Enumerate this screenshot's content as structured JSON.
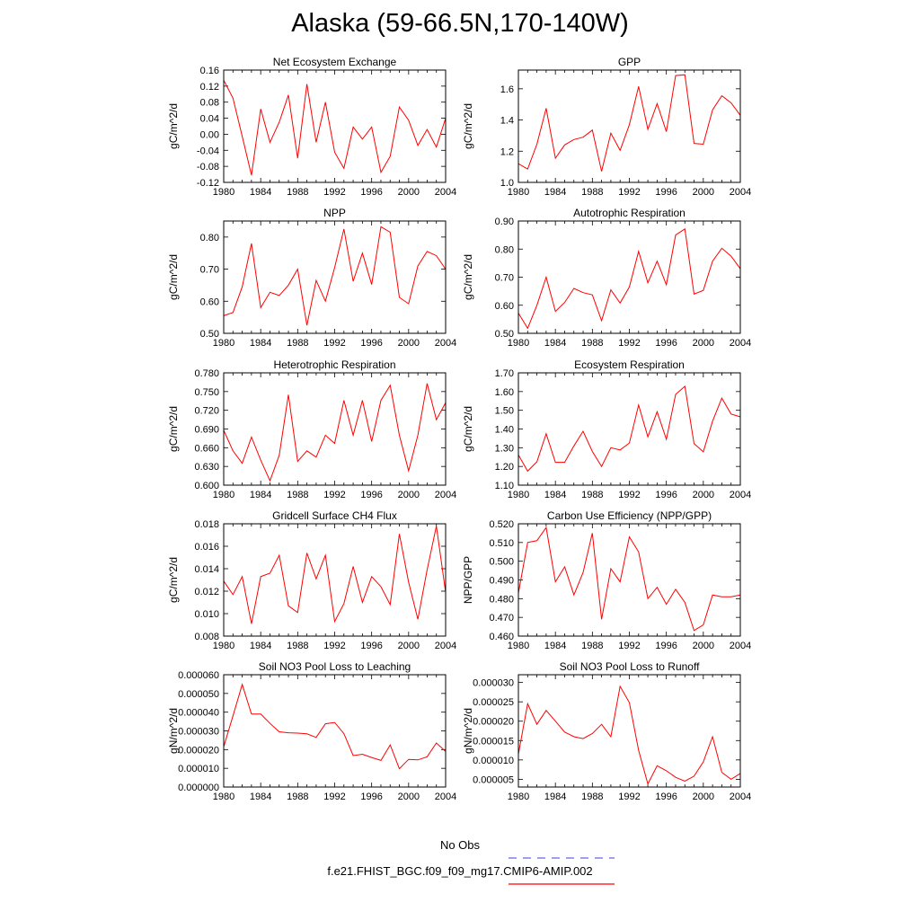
{
  "title": "Alaska (59-66.5N,170-140W)",
  "legend": {
    "obs_label": "No Obs",
    "obs_color": "#6666dd",
    "model_label": "f.e21.FHIST_BGC.f09_f09_mg17.CMIP6-AMIP.002",
    "model_color": "#ff0000"
  },
  "chart_data": [
    {
      "type": "line",
      "title": "Net Ecosystem Exchange",
      "ylabel": "gC/m^2/d",
      "xlim": [
        1980,
        2004
      ],
      "xticks": [
        "1980",
        "1984",
        "1988",
        "1992",
        "1996",
        "2000",
        "2004"
      ],
      "ylim": [
        -0.12,
        0.16
      ],
      "yticks": [
        "-0.12",
        "-0.08",
        "-0.04",
        "0.00",
        "0.04",
        "0.08",
        "0.12",
        "0.16"
      ],
      "series": [
        {
          "x": [
            1980,
            1981,
            1982,
            1983,
            1984,
            1985,
            1986,
            1987,
            1988,
            1989,
            1990,
            1991,
            1992,
            1993,
            1994,
            1995,
            1996,
            1997,
            1998,
            1999,
            2000,
            2001,
            2002,
            2003,
            2004
          ],
          "values": [
            0.135,
            0.09,
            -0.005,
            -0.102,
            0.063,
            -0.02,
            0.03,
            0.098,
            -0.06,
            0.125,
            -0.02,
            0.08,
            -0.045,
            -0.085,
            0.018,
            -0.012,
            0.018,
            -0.095,
            -0.055,
            0.068,
            0.035,
            -0.028,
            0.012,
            -0.032,
            0.04
          ]
        }
      ]
    },
    {
      "type": "line",
      "title": "GPP",
      "ylabel": "gC/m^2/d",
      "xlim": [
        1980,
        2004
      ],
      "xticks": [
        "1980",
        "1984",
        "1988",
        "1992",
        "1996",
        "2000",
        "2004"
      ],
      "ylim": [
        1.0,
        1.72
      ],
      "yticks": [
        "1.0",
        "1.2",
        "1.4",
        "1.6"
      ],
      "series": [
        {
          "x": [
            1980,
            1981,
            1982,
            1983,
            1984,
            1985,
            1986,
            1987,
            1988,
            1989,
            1990,
            1991,
            1992,
            1993,
            1994,
            1995,
            1996,
            1997,
            1998,
            1999,
            2000,
            2001,
            2002,
            2003,
            2004
          ],
          "values": [
            1.12,
            1.085,
            1.245,
            1.475,
            1.155,
            1.24,
            1.275,
            1.29,
            1.335,
            1.07,
            1.315,
            1.205,
            1.37,
            1.615,
            1.34,
            1.505,
            1.325,
            1.685,
            1.69,
            1.25,
            1.245,
            1.465,
            1.555,
            1.51,
            1.43
          ]
        }
      ]
    },
    {
      "type": "line",
      "title": "NPP",
      "ylabel": "gC/m^2/d",
      "xlim": [
        1980,
        2004
      ],
      "xticks": [
        "1980",
        "1984",
        "1988",
        "1992",
        "1996",
        "2000",
        "2004"
      ],
      "ylim": [
        0.5,
        0.85
      ],
      "yticks": [
        "0.50",
        "0.60",
        "0.70",
        "0.80"
      ],
      "series": [
        {
          "x": [
            1980,
            1981,
            1982,
            1983,
            1984,
            1985,
            1986,
            1987,
            1988,
            1989,
            1990,
            1991,
            1992,
            1993,
            1994,
            1995,
            1996,
            1997,
            1998,
            1999,
            2000,
            2001,
            2002,
            2003,
            2004
          ],
          "values": [
            0.555,
            0.565,
            0.645,
            0.78,
            0.58,
            0.628,
            0.618,
            0.65,
            0.7,
            0.525,
            0.665,
            0.6,
            0.705,
            0.825,
            0.662,
            0.75,
            0.652,
            0.832,
            0.815,
            0.612,
            0.592,
            0.71,
            0.755,
            0.742,
            0.7
          ]
        }
      ]
    },
    {
      "type": "line",
      "title": "Autotrophic Respiration",
      "ylabel": "gC/m^2/d",
      "xlim": [
        1980,
        2004
      ],
      "xticks": [
        "1980",
        "1984",
        "1988",
        "1992",
        "1996",
        "2000",
        "2004"
      ],
      "ylim": [
        0.5,
        0.9
      ],
      "yticks": [
        "0.50",
        "0.60",
        "0.70",
        "0.80",
        "0.90"
      ],
      "series": [
        {
          "x": [
            1980,
            1981,
            1982,
            1983,
            1984,
            1985,
            1986,
            1987,
            1988,
            1989,
            1990,
            1991,
            1992,
            1993,
            1994,
            1995,
            1996,
            1997,
            1998,
            1999,
            2000,
            2001,
            2002,
            2003,
            2004
          ],
          "values": [
            0.572,
            0.518,
            0.6,
            0.7,
            0.578,
            0.61,
            0.66,
            0.645,
            0.637,
            0.545,
            0.655,
            0.608,
            0.665,
            0.792,
            0.68,
            0.757,
            0.673,
            0.85,
            0.872,
            0.64,
            0.653,
            0.757,
            0.803,
            0.775,
            0.73
          ]
        }
      ]
    },
    {
      "type": "line",
      "title": "Heterotrophic Respiration",
      "ylabel": "gC/m^2/d",
      "xlim": [
        1980,
        2004
      ],
      "xticks": [
        "1980",
        "1984",
        "1988",
        "1992",
        "1996",
        "2000",
        "2004"
      ],
      "ylim": [
        0.6,
        0.78
      ],
      "yticks": [
        "0.600",
        "0.630",
        "0.660",
        "0.690",
        "0.720",
        "0.750",
        "0.780"
      ],
      "series": [
        {
          "x": [
            1980,
            1981,
            1982,
            1983,
            1984,
            1985,
            1986,
            1987,
            1988,
            1989,
            1990,
            1991,
            1992,
            1993,
            1994,
            1995,
            1996,
            1997,
            1998,
            1999,
            2000,
            2001,
            2002,
            2003,
            2004
          ],
          "values": [
            0.688,
            0.655,
            0.635,
            0.677,
            0.64,
            0.607,
            0.648,
            0.745,
            0.638,
            0.655,
            0.645,
            0.68,
            0.667,
            0.736,
            0.68,
            0.736,
            0.67,
            0.736,
            0.76,
            0.68,
            0.623,
            0.68,
            0.763,
            0.705,
            0.732
          ]
        }
      ]
    },
    {
      "type": "line",
      "title": "Ecosystem Respiration",
      "ylabel": "gC/m^2/d",
      "xlim": [
        1980,
        2004
      ],
      "xticks": [
        "1980",
        "1984",
        "1988",
        "1992",
        "1996",
        "2000",
        "2004"
      ],
      "ylim": [
        1.1,
        1.7
      ],
      "yticks": [
        "1.10",
        "1.20",
        "1.30",
        "1.40",
        "1.50",
        "1.60",
        "1.70"
      ],
      "series": [
        {
          "x": [
            1980,
            1981,
            1982,
            1983,
            1984,
            1985,
            1986,
            1987,
            1988,
            1989,
            1990,
            1991,
            1992,
            1993,
            1994,
            1995,
            1996,
            1997,
            1998,
            1999,
            2000,
            2001,
            2002,
            2003,
            2004
          ],
          "values": [
            1.262,
            1.175,
            1.225,
            1.375,
            1.222,
            1.222,
            1.31,
            1.388,
            1.28,
            1.2,
            1.3,
            1.288,
            1.325,
            1.528,
            1.358,
            1.492,
            1.345,
            1.585,
            1.628,
            1.322,
            1.278,
            1.442,
            1.565,
            1.48,
            1.465
          ]
        }
      ]
    },
    {
      "type": "line",
      "title": "Gridcell Surface CH4 Flux",
      "ylabel": "gC/m^2/d",
      "xlim": [
        1980,
        2004
      ],
      "xticks": [
        "1980",
        "1984",
        "1988",
        "1992",
        "1996",
        "2000",
        "2004"
      ],
      "ylim": [
        0.008,
        0.018
      ],
      "yticks": [
        "0.008",
        "0.010",
        "0.012",
        "0.014",
        "0.016",
        "0.018"
      ],
      "series": [
        {
          "x": [
            1980,
            1981,
            1982,
            1983,
            1984,
            1985,
            1986,
            1987,
            1988,
            1989,
            1990,
            1991,
            1992,
            1993,
            1994,
            1995,
            1996,
            1997,
            1998,
            1999,
            2000,
            2001,
            2002,
            2003,
            2004
          ],
          "values": [
            0.0129,
            0.0117,
            0.0133,
            0.0091,
            0.0133,
            0.0136,
            0.0152,
            0.0107,
            0.0101,
            0.0154,
            0.0131,
            0.0152,
            0.0093,
            0.0109,
            0.0142,
            0.011,
            0.0133,
            0.0124,
            0.0108,
            0.0171,
            0.0128,
            0.0095,
            0.0139,
            0.0178,
            0.0119
          ]
        }
      ]
    },
    {
      "type": "line",
      "title": "Carbon Use Efficiency (NPP/GPP)",
      "ylabel": "NPP/GPP",
      "xlim": [
        1980,
        2004
      ],
      "xticks": [
        "1980",
        "1984",
        "1988",
        "1992",
        "1996",
        "2000",
        "2004"
      ],
      "ylim": [
        0.46,
        0.52
      ],
      "yticks": [
        "0.460",
        "0.470",
        "0.480",
        "0.490",
        "0.500",
        "0.510",
        "0.520"
      ],
      "series": [
        {
          "x": [
            1980,
            1981,
            1982,
            1983,
            1984,
            1985,
            1986,
            1987,
            1988,
            1989,
            1990,
            1991,
            1992,
            1993,
            1994,
            1995,
            1996,
            1997,
            1998,
            1999,
            2000,
            2001,
            2002,
            2003,
            2004
          ],
          "values": [
            0.483,
            0.51,
            0.511,
            0.518,
            0.489,
            0.497,
            0.482,
            0.494,
            0.515,
            0.469,
            0.496,
            0.489,
            0.513,
            0.505,
            0.48,
            0.486,
            0.477,
            0.485,
            0.478,
            0.463,
            0.466,
            0.482,
            0.481,
            0.481,
            0.482
          ]
        }
      ]
    },
    {
      "type": "line",
      "title": "Soil NO3 Pool Loss to Leaching",
      "ylabel": "gN/m^2/d",
      "xlim": [
        1980,
        2004
      ],
      "xticks": [
        "1980",
        "1984",
        "1988",
        "1992",
        "1996",
        "2000",
        "2004"
      ],
      "ylim": [
        0.0,
        6e-05
      ],
      "yticks": [
        "0.000000",
        "0.000010",
        "0.000020",
        "0.000030",
        "0.000040",
        "0.000050",
        "0.000060"
      ],
      "series": [
        {
          "x": [
            1980,
            1981,
            1982,
            1983,
            1984,
            1985,
            1986,
            1987,
            1988,
            1989,
            1990,
            1991,
            1992,
            1993,
            1994,
            1995,
            1996,
            1997,
            1998,
            1999,
            2000,
            2001,
            2002,
            2003,
            2004
          ],
          "values": [
            2.15e-05,
            3.8e-05,
            5.48e-05,
            3.9e-05,
            3.9e-05,
            3.4e-05,
            2.95e-05,
            2.9e-05,
            2.88e-05,
            2.84e-05,
            2.65e-05,
            3.38e-05,
            3.45e-05,
            2.85e-05,
            1.68e-05,
            1.75e-05,
            1.58e-05,
            1.42e-05,
            2.25e-05,
            9.8e-06,
            1.48e-05,
            1.45e-05,
            1.62e-05,
            2.35e-05,
            1.9e-05
          ]
        }
      ]
    },
    {
      "type": "line",
      "title": "Soil NO3 Pool Loss to Runoff",
      "ylabel": "gN/m^2/d",
      "xlim": [
        1980,
        2004
      ],
      "xticks": [
        "1980",
        "1984",
        "1988",
        "1992",
        "1996",
        "2000",
        "2004"
      ],
      "ylim": [
        3e-06,
        3.2e-05
      ],
      "yticks": [
        "0.000005",
        "0.000010",
        "0.000015",
        "0.000020",
        "0.000025",
        "0.000030"
      ],
      "series": [
        {
          "x": [
            1980,
            1981,
            1982,
            1983,
            1984,
            1985,
            1986,
            1987,
            1988,
            1989,
            1990,
            1991,
            1992,
            1993,
            1994,
            1995,
            1996,
            1997,
            1998,
            1999,
            2000,
            2001,
            2002,
            2003,
            2004
          ],
          "values": [
            1.15e-05,
            2.45e-05,
            1.92e-05,
            2.28e-05,
            2e-05,
            1.72e-05,
            1.6e-05,
            1.55e-05,
            1.68e-05,
            1.92e-05,
            1.6e-05,
            2.9e-05,
            2.48e-05,
            1.25e-05,
            3.8e-06,
            8.5e-06,
            7.2e-06,
            5.5e-06,
            4.5e-06,
            5.8e-06,
            9.5e-06,
            1.6e-05,
            6.8e-06,
            5e-06,
            6.5e-06
          ]
        }
      ]
    }
  ]
}
